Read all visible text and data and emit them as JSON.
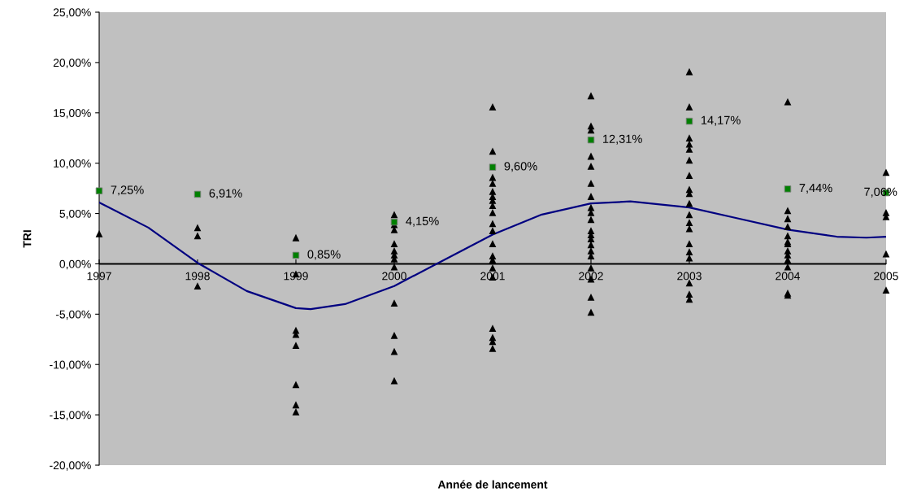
{
  "chart_data": {
    "type": "scatter",
    "xlabel": "Année de lancement",
    "ylabel": "TRI",
    "xlim": [
      1997,
      2005
    ],
    "xticks": [
      1997,
      1998,
      1999,
      2000,
      2001,
      2002,
      2003,
      2004,
      2005
    ],
    "ylim": [
      -20,
      25
    ],
    "yticks": [
      {
        "value": -20,
        "label": "-20,00%"
      },
      {
        "value": -15,
        "label": "-15,00%"
      },
      {
        "value": -10,
        "label": "-10,00%"
      },
      {
        "value": -5,
        "label": "-5,00%"
      },
      {
        "value": 0,
        "label": "0,00%"
      },
      {
        "value": 5,
        "label": "5,00%"
      },
      {
        "value": 10,
        "label": "10,00%"
      },
      {
        "value": 15,
        "label": "15,00%"
      },
      {
        "value": 20,
        "label": "20,00%"
      },
      {
        "value": 25,
        "label": "25,00%"
      }
    ],
    "grid": false,
    "legend": false,
    "ref_lines": [
      {
        "axis": "y",
        "value": 0,
        "color": "#000000"
      }
    ],
    "series": [
      {
        "marker": "triangle",
        "color": "#000000",
        "x": [
          1997,
          1998,
          1998,
          1998,
          1999,
          1999,
          1999,
          1999,
          1999,
          1999,
          1999,
          1999,
          2000,
          2000,
          2000,
          2000,
          2000,
          2000,
          2000,
          2000,
          2000,
          2000,
          2000,
          2000,
          2001,
          2001,
          2001,
          2001,
          2001,
          2001,
          2001,
          2001,
          2001,
          2001,
          2001,
          2001,
          2001,
          2001,
          2001,
          2001,
          2001,
          2001,
          2001,
          2001,
          2002,
          2002,
          2002,
          2002,
          2002,
          2002,
          2002,
          2002,
          2002,
          2002,
          2002,
          2002,
          2002,
          2002,
          2002,
          2002,
          2002,
          2002,
          2002,
          2002,
          2003,
          2003,
          2003,
          2003,
          2003,
          2003,
          2003,
          2003,
          2003,
          2003,
          2003,
          2003,
          2003,
          2003,
          2003,
          2003,
          2003,
          2003,
          2003,
          2004,
          2004,
          2004,
          2004,
          2004,
          2004,
          2004,
          2004,
          2004,
          2004,
          2004,
          2004,
          2004,
          2005,
          2005,
          2005,
          2005,
          2005
        ],
        "values": [
          3.0,
          3.6,
          2.8,
          -2.2,
          2.6,
          -1.0,
          -6.6,
          -7.0,
          -8.1,
          -12.0,
          -14.0,
          -14.7,
          4.9,
          3.9,
          3.4,
          2.0,
          1.3,
          0.9,
          0.5,
          -0.3,
          -3.9,
          -7.1,
          -8.7,
          -11.6,
          15.6,
          11.2,
          8.6,
          8.0,
          7.2,
          6.7,
          6.3,
          5.8,
          5.1,
          4.0,
          3.3,
          2.0,
          0.8,
          0.4,
          -0.4,
          -1.3,
          -6.4,
          -7.3,
          -7.7,
          -8.4,
          16.7,
          13.7,
          13.3,
          10.7,
          9.7,
          8.0,
          6.7,
          5.6,
          5.1,
          4.4,
          3.3,
          2.9,
          2.5,
          1.9,
          1.3,
          0.8,
          -0.4,
          -1.5,
          -3.3,
          -4.8,
          19.1,
          15.6,
          12.5,
          11.9,
          11.4,
          10.3,
          8.8,
          7.4,
          7.0,
          6.0,
          4.9,
          4.1,
          3.5,
          2.0,
          1.2,
          0.6,
          -1.9,
          -3.0,
          -3.5,
          16.1,
          5.3,
          4.5,
          3.7,
          2.8,
          2.2,
          2.0,
          1.3,
          0.9,
          0.4,
          -0.3,
          -2.9,
          -3.1,
          9.1,
          5.1,
          4.7,
          1.0,
          -2.6
        ]
      },
      {
        "marker": "square",
        "color": "#008000",
        "x": [
          1997,
          1998,
          1999,
          2000,
          2001,
          2002,
          2003,
          2004,
          2005
        ],
        "values": [
          7.25,
          6.91,
          0.85,
          4.15,
          9.6,
          12.31,
          14.17,
          7.44,
          7.06
        ],
        "value_labels": [
          "7,25%",
          "6,91%",
          "0,85%",
          "4,15%",
          "9,60%",
          "12,31%",
          "14,17%",
          "7,44%",
          "7,06%"
        ]
      },
      {
        "type": "line",
        "marker": "none",
        "line_style": "solid",
        "color": "#000080",
        "x": [
          1997,
          1997.5,
          1998,
          1998.5,
          1999,
          1999.15,
          1999.5,
          2000,
          2000.45,
          2001,
          2001.5,
          2002,
          2002.4,
          2003,
          2003.5,
          2004,
          2004.5,
          2004.8,
          2005
        ],
        "values": [
          6.1,
          3.6,
          0.1,
          -2.7,
          -4.4,
          -4.5,
          -4.0,
          -2.2,
          0.1,
          2.9,
          4.9,
          6.0,
          6.2,
          5.6,
          4.5,
          3.4,
          2.7,
          2.6,
          2.7
        ]
      }
    ]
  }
}
